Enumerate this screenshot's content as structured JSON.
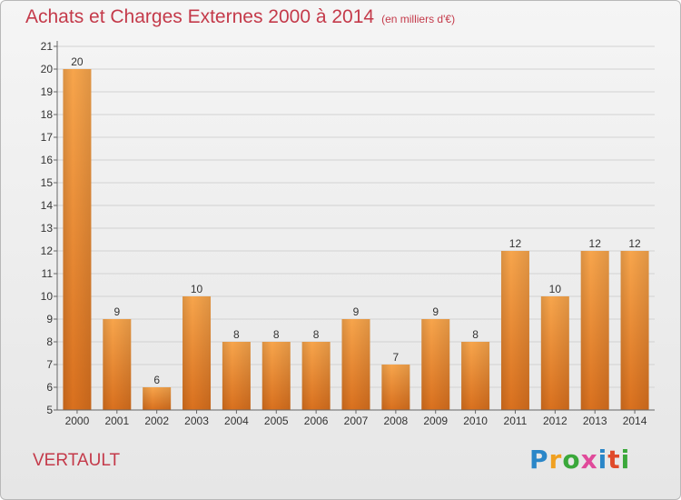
{
  "header": {
    "title": "Achats et Charges Externes 2000 à 2014",
    "subtitle": "(en milliers d'€)"
  },
  "commune": "VERTAULT",
  "logo": {
    "text": "Proxiti",
    "colors": [
      "#2a86c8",
      "#f0a020",
      "#3aa83a",
      "#e04a9a",
      "#2a86c8",
      "#e04a2a",
      "#3aa83a"
    ]
  },
  "chart_data": {
    "type": "bar",
    "categories": [
      "2000",
      "2001",
      "2002",
      "2003",
      "2004",
      "2005",
      "2006",
      "2007",
      "2008",
      "2009",
      "2010",
      "2011",
      "2012",
      "2013",
      "2014"
    ],
    "values": [
      20,
      9,
      6,
      10,
      8,
      8,
      8,
      9,
      7,
      9,
      8,
      12,
      10,
      12,
      12
    ],
    "ylim": [
      5,
      21
    ],
    "yticks": [
      5,
      6,
      7,
      8,
      9,
      10,
      11,
      12,
      13,
      14,
      15,
      16,
      17,
      18,
      19,
      20,
      21
    ],
    "grid": true,
    "bar_color": "#f29a3c",
    "title": "Achats et Charges Externes 2000 à 2014",
    "xlabel": "",
    "ylabel": ""
  }
}
